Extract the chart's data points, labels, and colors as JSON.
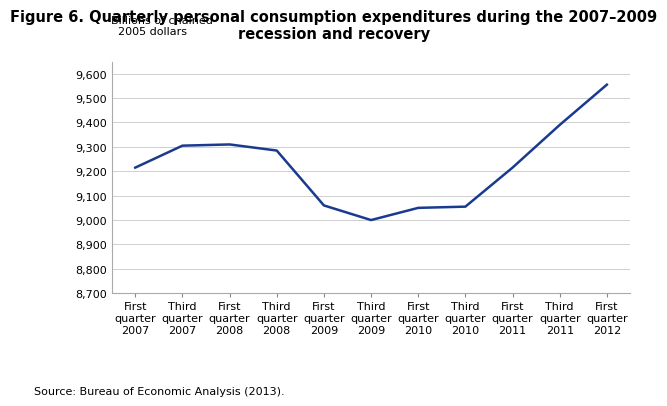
{
  "title": "Figure 6. Quarterly personal consumption expenditures during the 2007–2009\nrecession and recovery",
  "ylabel_line1": "Billions of chained",
  "ylabel_line2": "  2005 dollars",
  "source": "Source: Bureau of Economic Analysis (2013).",
  "x_labels": [
    [
      "First",
      "quarter",
      "2007"
    ],
    [
      "Third",
      "quarter",
      "2007"
    ],
    [
      "First",
      "quarter",
      "2008"
    ],
    [
      "Third",
      "quarter",
      "2008"
    ],
    [
      "First",
      "quarter",
      "2009"
    ],
    [
      "Third",
      "quarter",
      "2009"
    ],
    [
      "First",
      "quarter",
      "2010"
    ],
    [
      "Third",
      "quarter",
      "2010"
    ],
    [
      "First",
      "quarter",
      "2011"
    ],
    [
      "Third",
      "quarter",
      "2011"
    ],
    [
      "First",
      "quarter",
      "2012"
    ]
  ],
  "x_vals": [
    0,
    1,
    2,
    3,
    4,
    5,
    6,
    7,
    8,
    9,
    10
  ],
  "y_vals": [
    9215,
    9305,
    9310,
    9285,
    9060,
    9000,
    9050,
    9055,
    9215,
    9390,
    9555
  ],
  "ylim_min": 8700,
  "ylim_max": 9650,
  "yticks": [
    8700,
    8800,
    8900,
    9000,
    9100,
    9200,
    9300,
    9400,
    9500,
    9600
  ],
  "line_color": "#1a3a8f",
  "line_width": 1.8,
  "background_color": "#ffffff",
  "grid_color": "#c8c8c8",
  "title_fontsize": 10.5,
  "tick_fontsize": 8,
  "label_fontsize": 8,
  "source_fontsize": 8
}
